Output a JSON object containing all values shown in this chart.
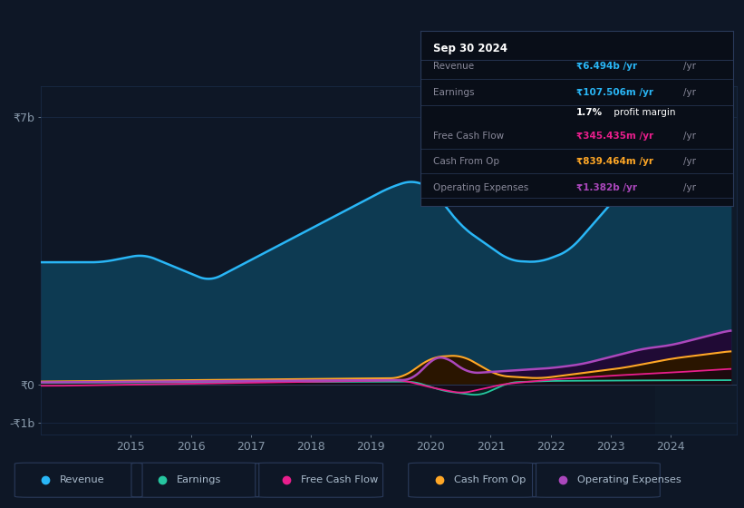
{
  "bg_color": "#0e1726",
  "plot_bg_color": "#0e1726",
  "info_box_bg": "#090e18",
  "ylabel_top": "₹7b",
  "ylabel_zero": "₹0",
  "ylabel_neg": "-₹1b",
  "x_ticks": [
    2015,
    2016,
    2017,
    2018,
    2019,
    2020,
    2021,
    2022,
    2023,
    2024
  ],
  "ylim": [
    -1300000000.0,
    7800000000.0
  ],
  "grid_color": "#1a2d4a",
  "grid_alpha": 0.8,
  "tick_color": "#8899aa",
  "revenue_color": "#29b6f6",
  "earnings_color": "#26c6a0",
  "fcf_color": "#e91e8c",
  "cashop_color": "#ffa726",
  "opex_color": "#ab47bc",
  "revenue_fill": "#0d3a52",
  "opex_fill": "#1a0a2e",
  "info_title": "Sep 30 2024",
  "info_revenue_val": "₹6.494b /yr",
  "info_revenue_color": "#29b6f6",
  "info_earnings_val": "₹107.506m /yr",
  "info_earnings_color": "#29b6f6",
  "info_margin": "1.7%",
  "info_margin_suffix": " profit margin",
  "info_fcf_val": "₹345.435m /yr",
  "info_fcf_color": "#e91e8c",
  "info_cashop_val": "₹839.464m /yr",
  "info_cashop_color": "#ffa726",
  "info_opex_val": "₹1.382b /yr",
  "info_opex_color": "#ab47bc",
  "legend_items": [
    "Revenue",
    "Earnings",
    "Free Cash Flow",
    "Cash From Op",
    "Operating Expenses"
  ],
  "legend_colors": [
    "#29b6f6",
    "#26c6a0",
    "#e91e8c",
    "#ffa726",
    "#ab47bc"
  ]
}
